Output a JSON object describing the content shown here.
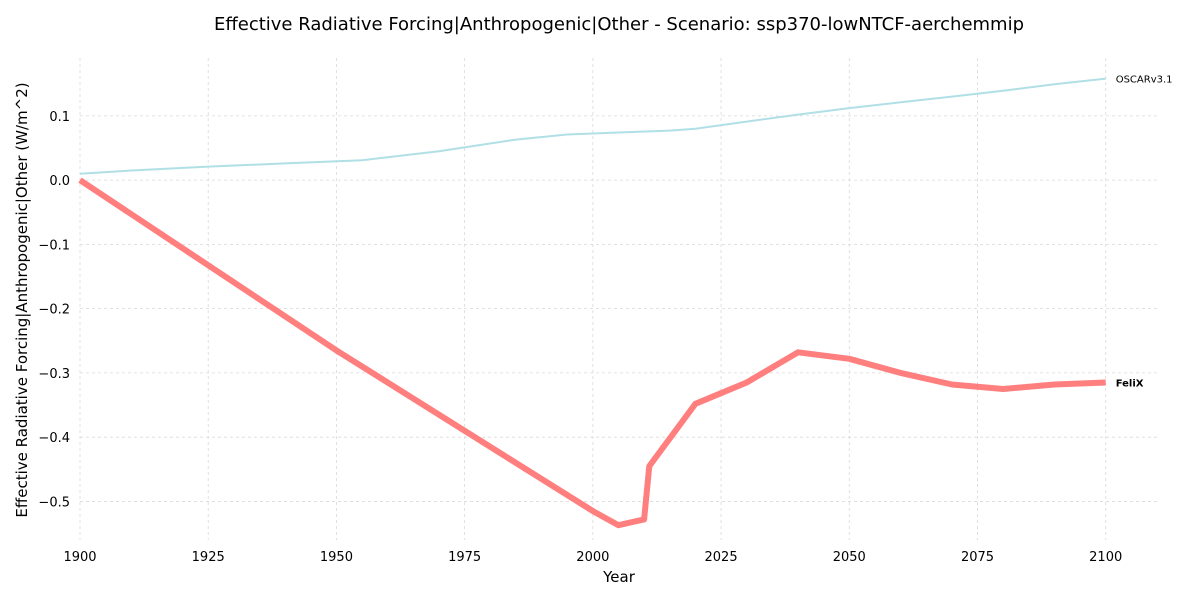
{
  "chart_data": {
    "type": "line",
    "title": "Effective Radiative Forcing|Anthropogenic|Other - Scenario: ssp370-lowNTCF-aerchemmip",
    "xlabel": "Year",
    "ylabel": "Effective Radiative Forcing|Anthropogenic|Other (W/m^2)",
    "xlim": [
      1900,
      2110
    ],
    "ylim": [
      -0.56,
      0.19
    ],
    "xticks": [
      1900,
      1925,
      1950,
      1975,
      2000,
      2025,
      2050,
      2075,
      2100
    ],
    "xtick_labels": [
      "1900",
      "1925",
      "1950",
      "1975",
      "2000",
      "2025",
      "2050",
      "2075",
      "2100"
    ],
    "yticks": [
      0.1,
      0.0,
      -0.1,
      -0.2,
      -0.3,
      -0.4,
      -0.5
    ],
    "ytick_labels": [
      "0.1",
      "0.0",
      "−0.1",
      "−0.2",
      "−0.3",
      "−0.4",
      "−0.5"
    ],
    "grid": true,
    "legend": "inline-labels-at-line-ends",
    "series": [
      {
        "name": "OSCARv3.1",
        "color": "#b0e0e6",
        "bold": false,
        "x": [
          1900,
          1910,
          1925,
          1940,
          1955,
          1970,
          1985,
          1995,
          2005,
          2015,
          2020,
          2030,
          2040,
          2050,
          2060,
          2070,
          2080,
          2090,
          2100
        ],
        "y": [
          0.01,
          0.015,
          0.021,
          0.026,
          0.031,
          0.045,
          0.063,
          0.071,
          0.074,
          0.077,
          0.08,
          0.091,
          0.102,
          0.112,
          0.121,
          0.13,
          0.139,
          0.149,
          0.158
        ]
      },
      {
        "name": "FeliX",
        "color": "#ff7f7f",
        "bold": true,
        "x": [
          1900,
          1950,
          2000,
          2005,
          2010,
          2011,
          2020,
          2030,
          2040,
          2050,
          2060,
          2070,
          2080,
          2090,
          2100
        ],
        "y": [
          0.0,
          -0.265,
          -0.515,
          -0.537,
          -0.528,
          -0.445,
          -0.348,
          -0.315,
          -0.268,
          -0.278,
          -0.3,
          -0.318,
          -0.325,
          -0.318,
          -0.315
        ]
      }
    ]
  }
}
